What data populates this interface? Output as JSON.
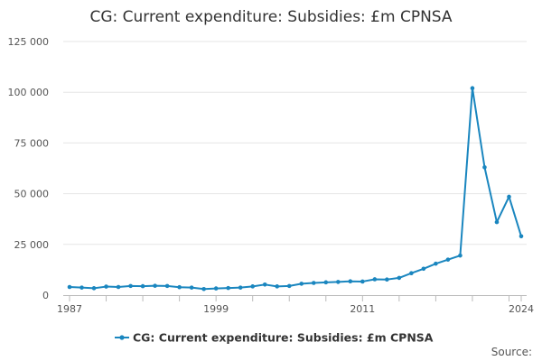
{
  "chart_data": {
    "type": "line",
    "title": "CG: Current expenditure: Subsidies: £m CPNSA",
    "series": [
      {
        "name": "CG: Current expenditure: Subsidies: £m CPNSA",
        "color": "#1a86bf",
        "x": [
          1987,
          1988,
          1989,
          1990,
          1991,
          1992,
          1993,
          1994,
          1995,
          1996,
          1997,
          1998,
          1999,
          2000,
          2001,
          2002,
          2003,
          2004,
          2005,
          2006,
          2007,
          2008,
          2009,
          2010,
          2011,
          2012,
          2013,
          2014,
          2015,
          2016,
          2017,
          2018,
          2019,
          2020,
          2021,
          2022,
          2023,
          2024
        ],
        "values": [
          4000,
          3700,
          3400,
          4200,
          4000,
          4500,
          4400,
          4600,
          4500,
          3900,
          3700,
          3000,
          3300,
          3500,
          3700,
          4300,
          5200,
          4300,
          4500,
          5600,
          6000,
          6300,
          6500,
          6800,
          6700,
          7800,
          7700,
          8500,
          10800,
          13000,
          15500,
          17500,
          19500,
          102000,
          63000,
          36000,
          48500,
          29000
        ]
      }
    ],
    "x_ticks": [
      "1987",
      "1999",
      "2011",
      "2024"
    ],
    "y_ticks": [
      "0",
      "25 000",
      "50 000",
      "75 000",
      "100 000",
      "125 000"
    ],
    "x_range": [
      1987,
      2024
    ],
    "ylim": [
      0,
      125000
    ],
    "legend_position": "bottom",
    "source_label": "Source:"
  }
}
